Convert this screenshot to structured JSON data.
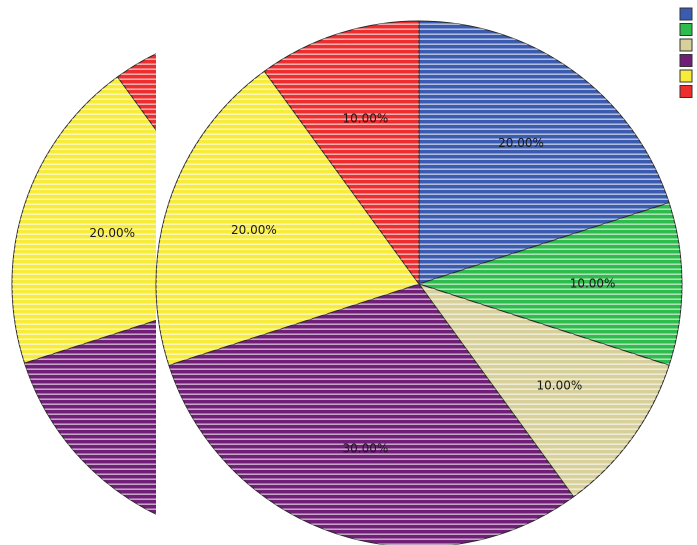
{
  "chart_data": [
    {
      "type": "pie",
      "note": "partial pie, clipped at right by the main chart",
      "slices": [
        {
          "value": 20,
          "label": "20.00%",
          "color": "#3a5bb0"
        },
        {
          "value": 10,
          "label": "10.00%",
          "color": "#2ebd4c"
        },
        {
          "value": 10,
          "label": "10.00%",
          "color": "#d8d09a"
        },
        {
          "value": 30,
          "label": "30.00%",
          "color": "#701e78"
        },
        {
          "value": 20,
          "label": "20.00%",
          "color": "#f8ec3a"
        },
        {
          "value": 10,
          "label": "10.00%",
          "color": "#ee2e2e"
        }
      ]
    },
    {
      "type": "pie",
      "slices": [
        {
          "value": 20,
          "label": "20.00%",
          "color": "#3a5bb0"
        },
        {
          "value": 10,
          "label": "10.00%",
          "color": "#2ebd4c"
        },
        {
          "value": 10,
          "label": "10.00%",
          "color": "#d8d09a"
        },
        {
          "value": 30,
          "label": "30.00%",
          "color": "#701e78"
        },
        {
          "value": 20,
          "label": "20.00%",
          "color": "#f8ec3a"
        },
        {
          "value": 10,
          "label": "10.00%",
          "color": "#ee2e2e"
        }
      ],
      "legend": {
        "placement": "top-right",
        "entries": [
          {
            "text": "",
            "color": "#3a5bb0"
          },
          {
            "text": "",
            "color": "#2ebd4c"
          },
          {
            "text": "",
            "color": "#d8d09a"
          },
          {
            "text": "",
            "color": "#701e78"
          },
          {
            "text": "",
            "color": "#f8ec3a"
          },
          {
            "text": "",
            "color": "#ee2e2e"
          }
        ]
      }
    }
  ]
}
